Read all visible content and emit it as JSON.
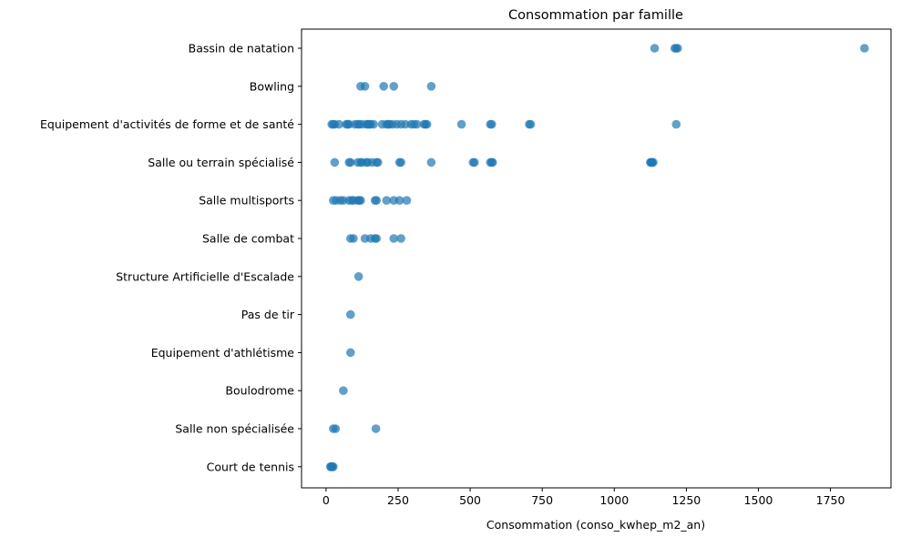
{
  "chart_data": {
    "type": "scatter",
    "title": "Consommation par famille",
    "xlabel": "Consommation (conso_kwhep_m2_an)",
    "ylabel": "",
    "xlim": [
      -85,
      1960
    ],
    "xticks": [
      0,
      250,
      500,
      750,
      1000,
      1250,
      1500,
      1750
    ],
    "grid": false,
    "color": "#1f77b4",
    "alpha": 0.7,
    "categories": [
      "Bassin de natation",
      "Bowling",
      "Equipement d'activités de forme et de santé",
      "Salle ou terrain spécialisé",
      "Salle multisports",
      "Salle de combat",
      "Structure Artificielle d'Escalade",
      "Pas de tir",
      "Equipement d'athlétisme",
      "Boulodrome",
      "Salle non spécialisée",
      "Court de tennis"
    ],
    "points": [
      {
        "category": "Bassin de natation",
        "x": [
          1140,
          1210,
          1215,
          1220,
          1868
        ]
      },
      {
        "category": "Bowling",
        "x": [
          120,
          135,
          200,
          235,
          365
        ]
      },
      {
        "category": "Equipement d'activités de forme et de santé",
        "x": [
          20,
          25,
          30,
          45,
          70,
          75,
          80,
          100,
          110,
          115,
          125,
          140,
          145,
          150,
          155,
          165,
          195,
          210,
          215,
          220,
          230,
          245,
          260,
          275,
          295,
          305,
          315,
          340,
          345,
          350,
          470,
          570,
          575,
          705,
          710,
          1215
        ]
      },
      {
        "category": "Salle ou terrain spécialisé",
        "x": [
          30,
          80,
          85,
          110,
          120,
          125,
          140,
          145,
          160,
          175,
          180,
          255,
          260,
          365,
          510,
          515,
          570,
          575,
          578,
          1125,
          1128,
          1130,
          1132,
          1135
        ]
      },
      {
        "category": "Salle multisports",
        "x": [
          25,
          35,
          50,
          60,
          80,
          90,
          95,
          110,
          115,
          120,
          170,
          175,
          210,
          235,
          255,
          280
        ]
      },
      {
        "category": "Salle de combat",
        "x": [
          85,
          95,
          135,
          155,
          170,
          175,
          235,
          260
        ]
      },
      {
        "category": "Structure Artificielle d'Escalade",
        "x": [
          113
        ]
      },
      {
        "category": "Pas de tir",
        "x": [
          85
        ]
      },
      {
        "category": "Equipement d'athlétisme",
        "x": [
          85
        ]
      },
      {
        "category": "Boulodrome",
        "x": [
          60
        ]
      },
      {
        "category": "Salle non spécialisée",
        "x": [
          25,
          33,
          173
        ]
      },
      {
        "category": "Court de tennis",
        "x": [
          15,
          18,
          20,
          22,
          25
        ]
      }
    ]
  }
}
